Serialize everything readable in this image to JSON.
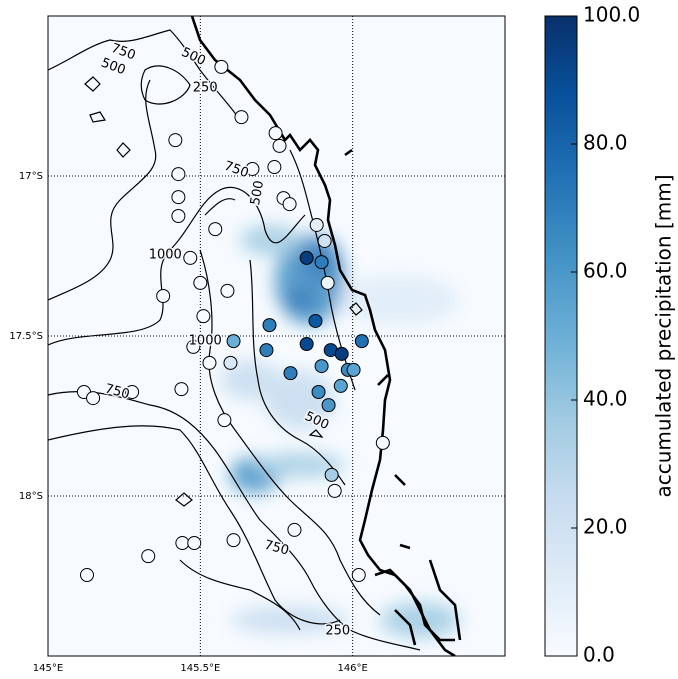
{
  "chart_data": {
    "type": "map",
    "xlim": [
      145.0,
      146.5
    ],
    "ylim": [
      -18.5,
      -16.5
    ],
    "xticks": [
      {
        "value": 145.0,
        "label": "145°E"
      },
      {
        "value": 145.5,
        "label": "145.5°E"
      },
      {
        "value": 146.0,
        "label": "146°E"
      }
    ],
    "yticks": [
      {
        "value": -17.0,
        "label": "17°S"
      },
      {
        "value": -17.5,
        "label": "17.5°S"
      },
      {
        "value": -18.0,
        "label": "18°S"
      }
    ],
    "grid": true,
    "colorbar": {
      "label": "accumulated precipitation [mm]",
      "lim": [
        0,
        100
      ],
      "ticks": [
        {
          "value": 0,
          "label": "0.0"
        },
        {
          "value": 20,
          "label": "20.0"
        },
        {
          "value": 40,
          "label": "40.0"
        },
        {
          "value": 60,
          "label": "60.0"
        },
        {
          "value": 80,
          "label": "80.0"
        },
        {
          "value": 100,
          "label": "100.0"
        }
      ],
      "colormap": "Blues"
    },
    "contour_labels": [
      {
        "value": 750,
        "lon": 145.247,
        "lat": -16.613
      },
      {
        "value": 500,
        "lon": 145.214,
        "lat": -16.659
      },
      {
        "value": 500,
        "lon": 145.477,
        "lat": -16.628
      },
      {
        "value": 250,
        "lon": 145.516,
        "lat": -16.725
      },
      {
        "value": 750,
        "lon": 145.618,
        "lat": -16.981
      },
      {
        "value": 500,
        "lon": 145.688,
        "lat": -17.053
      },
      {
        "value": 1000,
        "lon": 145.385,
        "lat": -17.247
      },
      {
        "value": 1000,
        "lon": 145.516,
        "lat": -17.516
      },
      {
        "value": 750,
        "lon": 145.227,
        "lat": -17.675
      },
      {
        "value": 500,
        "lon": 145.882,
        "lat": -17.766
      },
      {
        "value": 750,
        "lon": 145.75,
        "lat": -18.163
      },
      {
        "value": 250,
        "lon": 145.951,
        "lat": -18.422
      }
    ],
    "stations": [
      {
        "lon": 145.569,
        "lat": -16.659,
        "value": 0
      },
      {
        "lon": 145.635,
        "lat": -16.816,
        "value": 0
      },
      {
        "lon": 145.747,
        "lat": -16.866,
        "value": 0
      },
      {
        "lon": 145.76,
        "lat": -16.906,
        "value": 0
      },
      {
        "lon": 145.671,
        "lat": -16.978,
        "value": 0
      },
      {
        "lon": 145.743,
        "lat": -16.972,
        "value": 0
      },
      {
        "lon": 145.418,
        "lat": -16.888,
        "value": 0
      },
      {
        "lon": 145.428,
        "lat": -16.994,
        "value": 0
      },
      {
        "lon": 145.428,
        "lat": -17.066,
        "value": 0
      },
      {
        "lon": 145.428,
        "lat": -17.125,
        "value": 0
      },
      {
        "lon": 145.773,
        "lat": -17.069,
        "value": 0
      },
      {
        "lon": 145.793,
        "lat": -17.088,
        "value": 0
      },
      {
        "lon": 145.549,
        "lat": -17.166,
        "value": 0
      },
      {
        "lon": 145.882,
        "lat": -17.153,
        "value": 10
      },
      {
        "lon": 145.908,
        "lat": -17.203,
        "value": 20
      },
      {
        "lon": 145.467,
        "lat": -17.256,
        "value": 0
      },
      {
        "lon": 145.849,
        "lat": -17.256,
        "value": 95
      },
      {
        "lon": 145.898,
        "lat": -17.269,
        "value": 70
      },
      {
        "lon": 145.918,
        "lat": -17.334,
        "value": 5
      },
      {
        "lon": 145.5,
        "lat": -17.334,
        "value": 0
      },
      {
        "lon": 145.589,
        "lat": -17.359,
        "value": 0
      },
      {
        "lon": 145.378,
        "lat": -17.375,
        "value": 0
      },
      {
        "lon": 145.51,
        "lat": -17.438,
        "value": 0
      },
      {
        "lon": 145.878,
        "lat": -17.453,
        "value": 85
      },
      {
        "lon": 145.727,
        "lat": -17.466,
        "value": 70
      },
      {
        "lon": 145.609,
        "lat": -17.516,
        "value": 50
      },
      {
        "lon": 145.849,
        "lat": -17.525,
        "value": 90
      },
      {
        "lon": 145.717,
        "lat": -17.544,
        "value": 70
      },
      {
        "lon": 145.928,
        "lat": -17.544,
        "value": 90
      },
      {
        "lon": 145.964,
        "lat": -17.556,
        "value": 95
      },
      {
        "lon": 146.03,
        "lat": -17.516,
        "value": 75
      },
      {
        "lon": 145.477,
        "lat": -17.534,
        "value": 0
      },
      {
        "lon": 145.53,
        "lat": -17.584,
        "value": 0
      },
      {
        "lon": 145.599,
        "lat": -17.584,
        "value": 15
      },
      {
        "lon": 145.898,
        "lat": -17.594,
        "value": 60
      },
      {
        "lon": 145.984,
        "lat": -17.606,
        "value": 65
      },
      {
        "lon": 146.003,
        "lat": -17.606,
        "value": 55
      },
      {
        "lon": 145.796,
        "lat": -17.616,
        "value": 70
      },
      {
        "lon": 145.961,
        "lat": -17.656,
        "value": 55
      },
      {
        "lon": 145.888,
        "lat": -17.675,
        "value": 65
      },
      {
        "lon": 145.921,
        "lat": -17.716,
        "value": 60
      },
      {
        "lon": 145.438,
        "lat": -17.666,
        "value": 0
      },
      {
        "lon": 145.276,
        "lat": -17.675,
        "value": 0
      },
      {
        "lon": 145.118,
        "lat": -17.675,
        "value": 0
      },
      {
        "lon": 145.148,
        "lat": -17.694,
        "value": 0
      },
      {
        "lon": 145.579,
        "lat": -17.763,
        "value": 0
      },
      {
        "lon": 146.099,
        "lat": -17.834,
        "value": 0
      },
      {
        "lon": 145.931,
        "lat": -17.934,
        "value": 35
      },
      {
        "lon": 145.941,
        "lat": -17.984,
        "value": 0
      },
      {
        "lon": 145.809,
        "lat": -18.106,
        "value": 0
      },
      {
        "lon": 145.609,
        "lat": -18.138,
        "value": 0
      },
      {
        "lon": 145.441,
        "lat": -18.147,
        "value": 0
      },
      {
        "lon": 145.48,
        "lat": -18.147,
        "value": 0
      },
      {
        "lon": 145.329,
        "lat": -18.188,
        "value": 0
      },
      {
        "lon": 146.02,
        "lat": -18.247,
        "value": 0
      },
      {
        "lon": 145.128,
        "lat": -18.247,
        "value": 0
      }
    ]
  }
}
